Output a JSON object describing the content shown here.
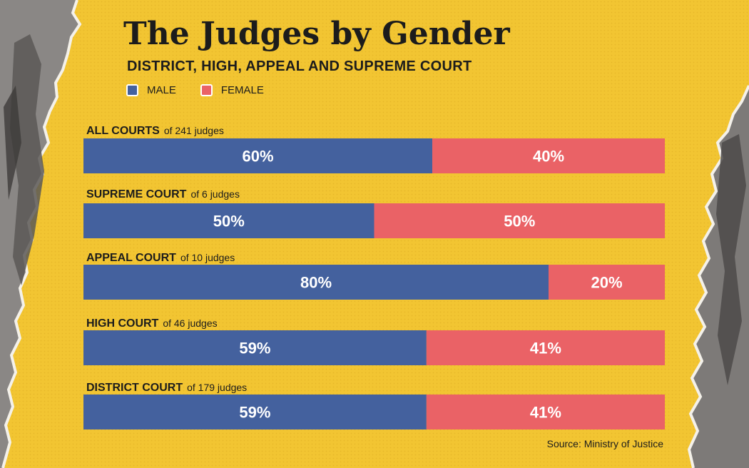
{
  "title": "The Judges by Gender",
  "subtitle": "DISTRICT, HIGH, APPEAL AND SUPREME COURT",
  "legend": {
    "male": "MALE",
    "female": "FEMALE"
  },
  "colors": {
    "background": "#f2c532",
    "male": "#44619e",
    "female": "#ea6266"
  },
  "source": "Source: Ministry of Justice",
  "chart_data": {
    "type": "bar",
    "orientation": "horizontal",
    "stacked": true,
    "percent": true,
    "categories": [
      "ALL COURTS",
      "SUPREME COURT",
      "APPEAL COURT",
      "HIGH COURT",
      "DISTRICT COURT"
    ],
    "category_notes": [
      "of 241 judges",
      "of 6 judges",
      "of 10 judges",
      "of 46 judges",
      "of 179 judges"
    ],
    "series": [
      {
        "name": "MALE",
        "values": [
          60,
          50,
          80,
          59,
          59
        ],
        "labels": [
          "60%",
          "50%",
          "80%",
          "59%",
          "59%"
        ]
      },
      {
        "name": "FEMALE",
        "values": [
          40,
          50,
          20,
          41,
          41
        ],
        "labels": [
          "40%",
          "50%",
          "20%",
          "41%",
          "41%"
        ]
      }
    ],
    "xlim": [
      0,
      100
    ],
    "grid": false,
    "legend_position": "top-left"
  }
}
